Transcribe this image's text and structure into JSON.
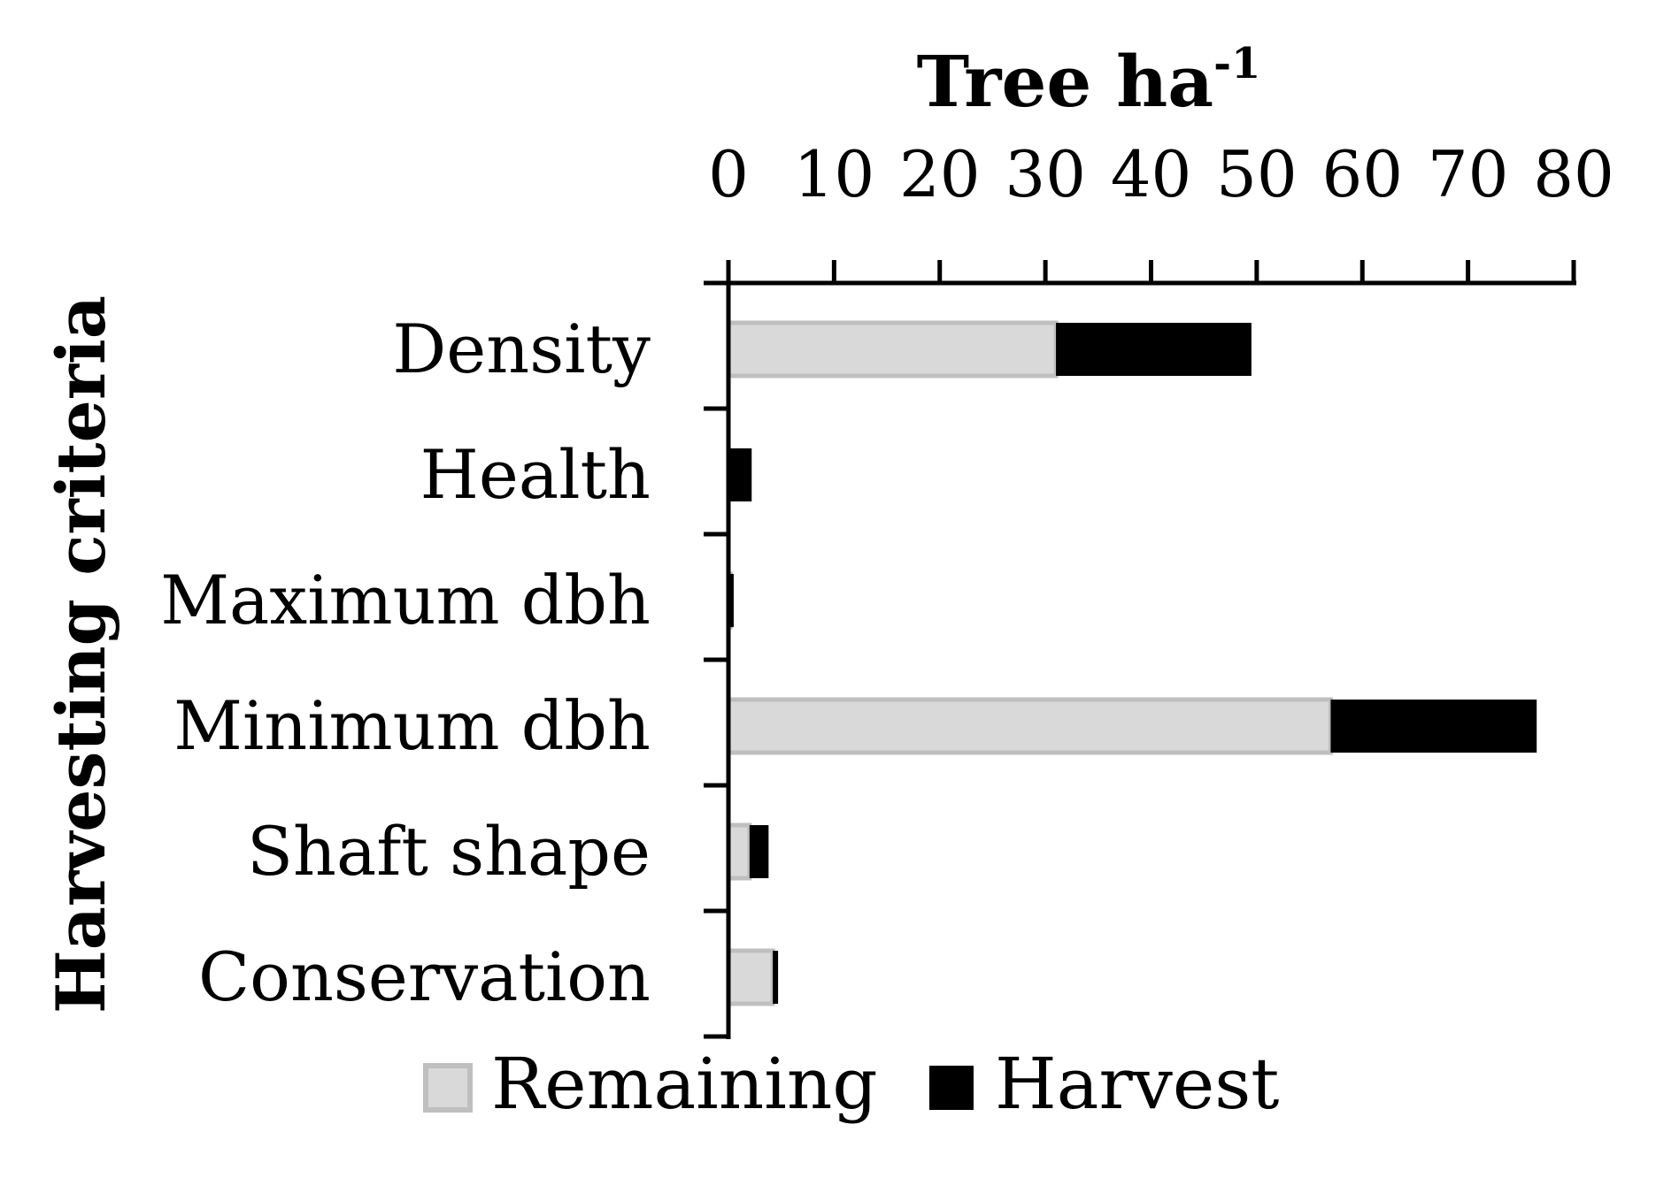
{
  "chart_data": {
    "type": "bar",
    "orientation": "horizontal",
    "stacked": true,
    "title": "",
    "xlabel": "Tree ha",
    "xlabel_superscript": "-1",
    "ylabel": "Harvesting criteria",
    "categories": [
      "Density",
      "Health",
      "Maximum dbh",
      "Minimum dbh ",
      "Shaft shape",
      "Conservation"
    ],
    "series": [
      {
        "name": "Remaining",
        "values": [
          31,
          0,
          0.2,
          57,
          2,
          4.2
        ]
      },
      {
        "name": "Harvest",
        "values": [
          18.5,
          2.2,
          0.3,
          19.5,
          1.8,
          0.5
        ]
      }
    ],
    "xlim": [
      0,
      80
    ],
    "xticks": [
      "0",
      "10",
      "20",
      "30",
      "40",
      "50",
      "60",
      "70",
      "80"
    ],
    "x_axis_position": "top",
    "grid": false,
    "legend_position": "bottom",
    "colors": {
      "Remaining": "#d9d9d9",
      "Remaining_border": "#bfbfbf",
      "Harvest": "#000000"
    }
  }
}
